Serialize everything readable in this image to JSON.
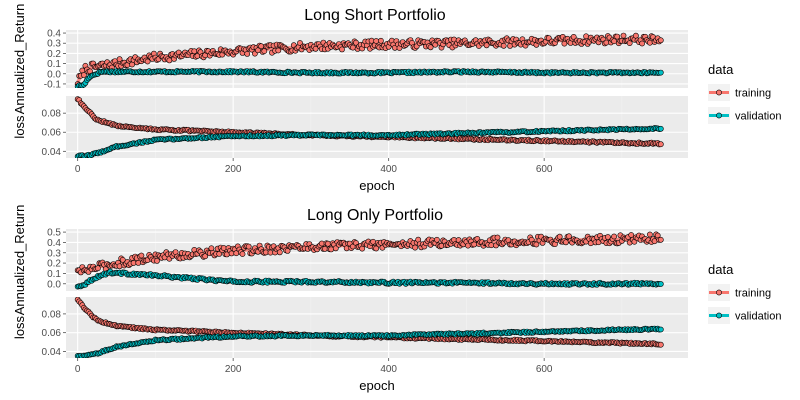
{
  "colors": {
    "training": "#F8766D",
    "validation": "#00BFC4",
    "panel": "#EBEBEB",
    "grid_major": "#FFFFFF"
  },
  "chart_data": [
    {
      "type": "scatter",
      "title": "Long Short Portfolio",
      "xlabel": "epoch",
      "x_ticks": [
        0,
        200,
        400,
        600
      ],
      "xlim": [
        -15,
        785
      ],
      "legend": {
        "title": "data",
        "entries": [
          "training",
          "validation"
        ],
        "position": "right"
      },
      "grid": true,
      "facets": [
        {
          "ylabel": "Annualized_Return",
          "ylim": [
            -0.14,
            0.43
          ],
          "y_ticks": [
            -0.1,
            0.0,
            0.1,
            0.2,
            0.3,
            0.4
          ],
          "y_tick_labels": [
            "-0.1",
            "0.0",
            "0.1",
            "0.2",
            "0.3",
            "0.4"
          ],
          "series": [
            {
              "name": "training",
              "points": [
                [
                  0,
                  -0.08
                ],
                [
                  10,
                  0.05
                ],
                [
                  25,
                  0.07
                ],
                [
                  50,
                  0.1
                ],
                [
                  100,
                  0.16
                ],
                [
                  200,
                  0.22
                ],
                [
                  300,
                  0.27
                ],
                [
                  400,
                  0.29
                ],
                [
                  500,
                  0.3
                ],
                [
                  600,
                  0.32
                ],
                [
                  700,
                  0.34
                ],
                [
                  750,
                  0.33
                ]
              ],
              "noise": 0.04
            },
            {
              "name": "validation",
              "points": [
                [
                  0,
                  -0.12
                ],
                [
                  8,
                  -0.11
                ],
                [
                  15,
                  -0.03
                ],
                [
                  30,
                  0.02
                ],
                [
                  60,
                  0.02
                ],
                [
                  120,
                  0.02
                ],
                [
                  200,
                  0.02
                ],
                [
                  300,
                  0.01
                ],
                [
                  400,
                  0.01
                ],
                [
                  500,
                  0.02
                ],
                [
                  600,
                  0.01
                ],
                [
                  750,
                  0.01
                ]
              ],
              "noise": 0.008
            }
          ]
        },
        {
          "ylabel": "loss",
          "ylim": [
            0.033,
            0.098
          ],
          "y_ticks": [
            0.04,
            0.06,
            0.08
          ],
          "y_tick_labels": [
            "0.04",
            "0.06",
            "0.08"
          ],
          "series": [
            {
              "name": "training",
              "points": [
                [
                  0,
                  0.095
                ],
                [
                  10,
                  0.085
                ],
                [
                  25,
                  0.073
                ],
                [
                  50,
                  0.067
                ],
                [
                  100,
                  0.063
                ],
                [
                  200,
                  0.06
                ],
                [
                  300,
                  0.057
                ],
                [
                  400,
                  0.055
                ],
                [
                  500,
                  0.053
                ],
                [
                  600,
                  0.051
                ],
                [
                  700,
                  0.049
                ],
                [
                  750,
                  0.048
                ]
              ],
              "noise": 0.0008
            },
            {
              "name": "validation",
              "points": [
                [
                  0,
                  0.035
                ],
                [
                  10,
                  0.035
                ],
                [
                  25,
                  0.038
                ],
                [
                  50,
                  0.045
                ],
                [
                  100,
                  0.052
                ],
                [
                  200,
                  0.056
                ],
                [
                  300,
                  0.057
                ],
                [
                  400,
                  0.057
                ],
                [
                  500,
                  0.059
                ],
                [
                  600,
                  0.061
                ],
                [
                  700,
                  0.063
                ],
                [
                  750,
                  0.064
                ]
              ],
              "noise": 0.0008
            }
          ]
        }
      ]
    },
    {
      "type": "scatter",
      "title": "Long Only Portfolio",
      "xlabel": "epoch",
      "x_ticks": [
        0,
        200,
        400,
        600
      ],
      "xlim": [
        -15,
        785
      ],
      "legend": {
        "title": "data",
        "entries": [
          "training",
          "validation"
        ],
        "position": "right"
      },
      "grid": true,
      "facets": [
        {
          "ylabel": "Annualized_Return",
          "ylim": [
            -0.07,
            0.53
          ],
          "y_ticks": [
            0.0,
            0.1,
            0.2,
            0.3,
            0.4,
            0.5
          ],
          "y_tick_labels": [
            "0.0",
            "0.1",
            "0.2",
            "0.3",
            "0.4",
            "0.5"
          ],
          "series": [
            {
              "name": "training",
              "points": [
                [
                  0,
                  0.12
                ],
                [
                  10,
                  0.13
                ],
                [
                  25,
                  0.16
                ],
                [
                  50,
                  0.2
                ],
                [
                  100,
                  0.26
                ],
                [
                  200,
                  0.32
                ],
                [
                  300,
                  0.36
                ],
                [
                  400,
                  0.38
                ],
                [
                  500,
                  0.4
                ],
                [
                  600,
                  0.42
                ],
                [
                  700,
                  0.43
                ],
                [
                  750,
                  0.44
                ]
              ],
              "noise": 0.04
            },
            {
              "name": "validation",
              "points": [
                [
                  0,
                  -0.03
                ],
                [
                  10,
                  0.0
                ],
                [
                  20,
                  0.05
                ],
                [
                  40,
                  0.11
                ],
                [
                  60,
                  0.1
                ],
                [
                  100,
                  0.08
                ],
                [
                  150,
                  0.05
                ],
                [
                  200,
                  0.02
                ],
                [
                  250,
                  0.02
                ],
                [
                  300,
                  0.02
                ],
                [
                  400,
                  0.01
                ],
                [
                  500,
                  0.01
                ],
                [
                  600,
                  0.0
                ],
                [
                  750,
                  0.0
                ]
              ],
              "noise": 0.01
            }
          ]
        },
        {
          "ylabel": "loss",
          "ylim": [
            0.033,
            0.098
          ],
          "y_ticks": [
            0.04,
            0.06,
            0.08
          ],
          "y_tick_labels": [
            "0.04",
            "0.06",
            "0.08"
          ],
          "series": [
            {
              "name": "training",
              "points": [
                [
                  0,
                  0.095
                ],
                [
                  10,
                  0.085
                ],
                [
                  25,
                  0.073
                ],
                [
                  50,
                  0.067
                ],
                [
                  100,
                  0.063
                ],
                [
                  200,
                  0.06
                ],
                [
                  300,
                  0.057
                ],
                [
                  400,
                  0.055
                ],
                [
                  500,
                  0.053
                ],
                [
                  600,
                  0.051
                ],
                [
                  700,
                  0.049
                ],
                [
                  750,
                  0.048
                ]
              ],
              "noise": 0.0008
            },
            {
              "name": "validation",
              "points": [
                [
                  0,
                  0.035
                ],
                [
                  10,
                  0.035
                ],
                [
                  25,
                  0.038
                ],
                [
                  50,
                  0.045
                ],
                [
                  100,
                  0.052
                ],
                [
                  200,
                  0.056
                ],
                [
                  300,
                  0.057
                ],
                [
                  400,
                  0.057
                ],
                [
                  500,
                  0.059
                ],
                [
                  600,
                  0.061
                ],
                [
                  700,
                  0.063
                ],
                [
                  750,
                  0.064
                ]
              ],
              "noise": 0.0008
            }
          ]
        }
      ]
    }
  ]
}
